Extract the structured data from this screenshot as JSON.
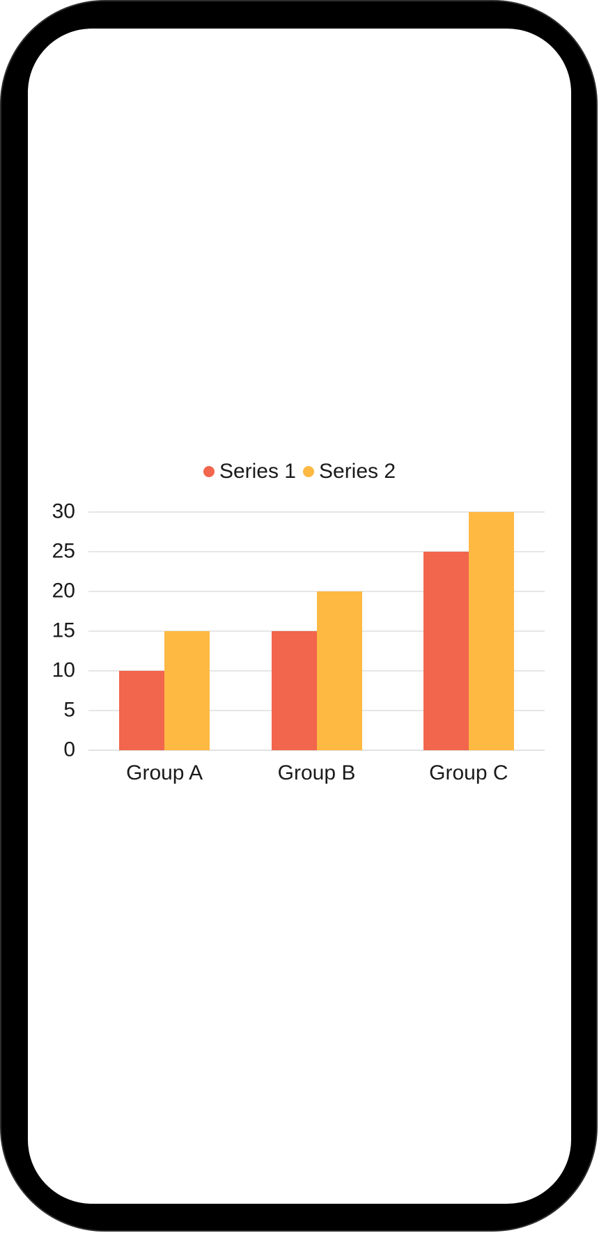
{
  "device": {
    "type": "phone-mockup",
    "frame_color": "#000000",
    "screen_color": "#FFFFFF"
  },
  "chart_data": {
    "type": "bar",
    "title": "",
    "xlabel": "",
    "ylabel": "",
    "categories": [
      "Group A",
      "Group B",
      "Group C"
    ],
    "series": [
      {
        "name": "Series 1",
        "color": "#F1664C",
        "values": [
          10,
          15,
          25
        ]
      },
      {
        "name": "Series 2",
        "color": "#FDB942",
        "values": [
          15,
          20,
          30
        ]
      }
    ],
    "ylim": [
      0,
      30
    ],
    "yticks": [
      0,
      5,
      10,
      15,
      20,
      25,
      30
    ],
    "grid": true,
    "gridline_color": "#E6E6E6",
    "baseline_color": "#E2E2E2",
    "legend_position": "top-center",
    "text_color": "#1A1A1A"
  }
}
